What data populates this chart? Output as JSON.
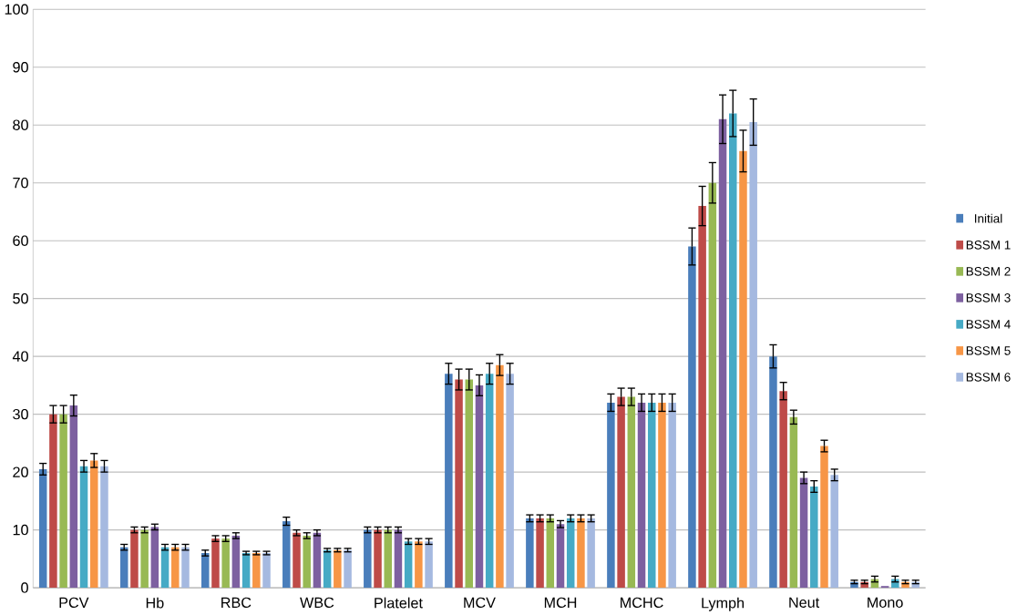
{
  "chart_data": {
    "type": "bar",
    "categories": [
      "PCV",
      "Hb",
      "RBC",
      "WBC",
      "Platelet",
      "MCV",
      "MCH",
      "MCHC",
      "Lymph",
      "Neut",
      "Mono"
    ],
    "series": [
      {
        "name": "Initial",
        "color": "#4a7ebb",
        "values": [
          20.5,
          7,
          6,
          11.5,
          10,
          37,
          12,
          32,
          59,
          40,
          1
        ],
        "errors": [
          1,
          0.5,
          0.5,
          0.7,
          0.5,
          1.8,
          0.6,
          1.5,
          3.2,
          2,
          0.3
        ]
      },
      {
        "name": "BSSM 1",
        "color": "#be4b48",
        "values": [
          30,
          10,
          8.5,
          9.5,
          10,
          36,
          12,
          33,
          66,
          34,
          1
        ],
        "errors": [
          1.5,
          0.5,
          0.5,
          0.5,
          0.5,
          1.8,
          0.6,
          1.5,
          3.4,
          1.5,
          0.3
        ]
      },
      {
        "name": "BSSM 2",
        "color": "#98b954",
        "values": [
          30,
          10,
          8.5,
          9,
          10,
          36,
          12,
          33,
          70,
          29.5,
          1.5
        ],
        "errors": [
          1.5,
          0.5,
          0.5,
          0.5,
          0.5,
          1.8,
          0.6,
          1.5,
          3.5,
          1.2,
          0.5
        ]
      },
      {
        "name": "BSSM 3",
        "color": "#7d60a0",
        "values": [
          31.5,
          10.5,
          9,
          9.5,
          10,
          35,
          11,
          32,
          81,
          19,
          0.3
        ],
        "errors": [
          1.8,
          0.5,
          0.5,
          0.5,
          0.5,
          1.8,
          0.6,
          1.5,
          4.2,
          1,
          null
        ]
      },
      {
        "name": "BSSM 4",
        "color": "#46aac5",
        "values": [
          21,
          7,
          6,
          6.5,
          8,
          37,
          12,
          32,
          82,
          17.5,
          1.5
        ],
        "errors": [
          1,
          0.5,
          0.3,
          0.3,
          0.5,
          1.8,
          0.6,
          1.5,
          4,
          1,
          0.5
        ]
      },
      {
        "name": "BSSM 5",
        "color": "#f79646",
        "values": [
          22,
          7,
          6,
          6.5,
          8,
          38.5,
          12,
          32,
          75.5,
          24.5,
          1
        ],
        "errors": [
          1.2,
          0.5,
          0.3,
          0.3,
          0.5,
          1.8,
          0.6,
          1.5,
          3.6,
          1,
          0.3
        ]
      },
      {
        "name": "BSSM 6",
        "color": "#a5b9e0",
        "values": [
          21,
          7,
          6,
          6.5,
          8,
          37,
          12,
          32,
          80.5,
          19.5,
          1
        ],
        "errors": [
          1,
          0.5,
          0.3,
          0.3,
          0.5,
          1.8,
          0.6,
          1.5,
          4,
          1,
          0.3
        ]
      }
    ],
    "ylim": [
      0,
      100
    ],
    "yticks": [
      0,
      10,
      20,
      30,
      40,
      50,
      60,
      70,
      80,
      90,
      100
    ],
    "grid": "y",
    "legend": "right"
  }
}
